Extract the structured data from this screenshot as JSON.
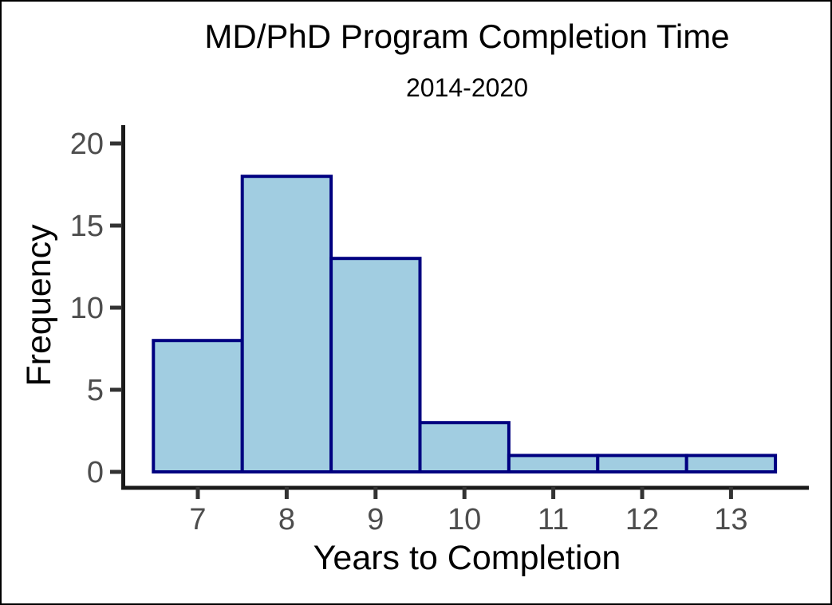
{
  "page": {
    "background": "#ffffff",
    "border_color": "#000000"
  },
  "chart_data": {
    "type": "bar",
    "subtype": "histogram",
    "title": "MD/PhD Program Completion Time",
    "subtitle": "2014-2020",
    "xlabel": "Years to Completion",
    "ylabel": "Frequency",
    "categories": [
      7,
      8,
      9,
      10,
      11,
      12,
      13
    ],
    "values": [
      8,
      18,
      13,
      3,
      1,
      1,
      1
    ],
    "bin_width": 1,
    "bin_edges": [
      6.5,
      7.5,
      8.5,
      9.5,
      10.5,
      11.5,
      12.5,
      13.5
    ],
    "x_tick_labels": [
      "7",
      "8",
      "9",
      "10",
      "11",
      "12",
      "13"
    ],
    "y_tick_labels": [
      "0",
      "5",
      "10",
      "15",
      "20"
    ],
    "y_ticks": [
      0,
      5,
      10,
      15,
      20
    ],
    "xlim": [
      6.5,
      13.5
    ],
    "ylim": [
      0,
      20
    ],
    "grid": false,
    "legend": false,
    "colors": {
      "bar_fill": "#A1CDE1",
      "bar_stroke": "#000080",
      "axis_line": "#1a1a1a",
      "tick_mark": "#333333",
      "tick_label": "#4d4d4d",
      "title_text": "#000000"
    }
  }
}
